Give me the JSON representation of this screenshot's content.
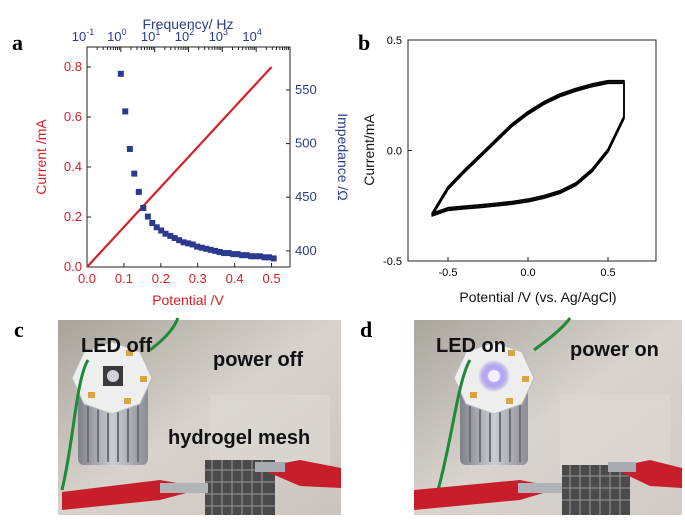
{
  "panels": {
    "a": "a",
    "b": "b",
    "c": "c",
    "d": "d"
  },
  "colors": {
    "current": "#d62027",
    "impedance": "#2b3a8f",
    "cv": "#000000"
  },
  "chart_data": [
    {
      "panel": "a",
      "type": "line",
      "xlabel": "Potential /V",
      "ylabel": "Current /mA",
      "xlim": [
        0.0,
        0.55
      ],
      "ylim": [
        0.0,
        0.88
      ],
      "xticks": [
        "0.0",
        "0.1",
        "0.2",
        "0.3",
        "0.4",
        "0.5"
      ],
      "yticks": [
        "0.0",
        "0.2",
        "0.4",
        "0.6",
        "0.8"
      ],
      "series": [
        {
          "x": [
            0.0,
            0.5
          ],
          "y": [
            0.0,
            0.8
          ]
        }
      ],
      "top_axis": {
        "label": "Frequency/ Hz",
        "scale": "log",
        "range": [
          0.1,
          100000
        ],
        "ticks": [
          {
            "base": "10",
            "exp": "-1"
          },
          {
            "base": "10",
            "exp": "0"
          },
          {
            "base": "10",
            "exp": "1"
          },
          {
            "base": "10",
            "exp": "2"
          },
          {
            "base": "10",
            "exp": "3"
          },
          {
            "base": "10",
            "exp": "4"
          }
        ]
      },
      "right_axis": {
        "label": "Impedance /Ω",
        "range": [
          385,
          590
        ],
        "ticks": [
          "400",
          "450",
          "500",
          "550"
        ]
      },
      "impedance_series": {
        "type": "scatter",
        "frequency": [
          1.0,
          1.35,
          1.85,
          2.5,
          3.4,
          4.6,
          6.3,
          8.5,
          11.5,
          15.6,
          21,
          29,
          39,
          53,
          72,
          98,
          133,
          180,
          245,
          333,
          452,
          614,
          834,
          1130,
          1540,
          2090,
          2840,
          3860,
          5240,
          7120,
          9670,
          13100,
          17800,
          24200,
          32900
        ],
        "impedance": [
          565,
          530,
          495,
          472,
          455,
          440,
          432,
          426,
          422,
          419,
          416,
          414,
          412,
          410,
          408,
          407,
          406,
          404,
          403,
          402,
          401,
          400,
          399,
          398,
          398,
          397,
          397,
          396,
          396,
          395,
          395,
          395,
          394,
          394,
          393
        ]
      }
    },
    {
      "panel": "b",
      "type": "line",
      "xlabel": "Potential /V (vs. Ag/AgCl)",
      "ylabel": "Current/mA",
      "xlim": [
        -0.75,
        0.8
      ],
      "ylim": [
        -0.5,
        0.5
      ],
      "xticks": [
        "-0.5",
        "0.0",
        "0.5"
      ],
      "yticks": [
        "-0.5",
        "0.0",
        "0.5"
      ],
      "series": [
        {
          "x": [
            -0.6,
            -0.5,
            -0.4,
            -0.3,
            -0.2,
            -0.1,
            0.0,
            0.1,
            0.2,
            0.3,
            0.4,
            0.5,
            0.6,
            0.6,
            0.5,
            0.4,
            0.3,
            0.2,
            0.1,
            0.0,
            -0.1,
            -0.2,
            -0.3,
            -0.4,
            -0.5,
            -0.6
          ],
          "y": [
            -0.29,
            -0.265,
            -0.258,
            -0.252,
            -0.245,
            -0.237,
            -0.226,
            -0.21,
            -0.188,
            -0.152,
            -0.09,
            0.0,
            0.15,
            0.31,
            0.31,
            0.295,
            0.275,
            0.25,
            0.215,
            0.17,
            0.115,
            0.045,
            -0.025,
            -0.095,
            -0.17,
            -0.29
          ]
        }
      ]
    }
  ],
  "photos": {
    "c": {
      "led_label": "LED off",
      "power_label": "power off",
      "mesh_label": "hydrogel mesh"
    },
    "d": {
      "led_label": "LED on",
      "power_label": "power on"
    }
  }
}
